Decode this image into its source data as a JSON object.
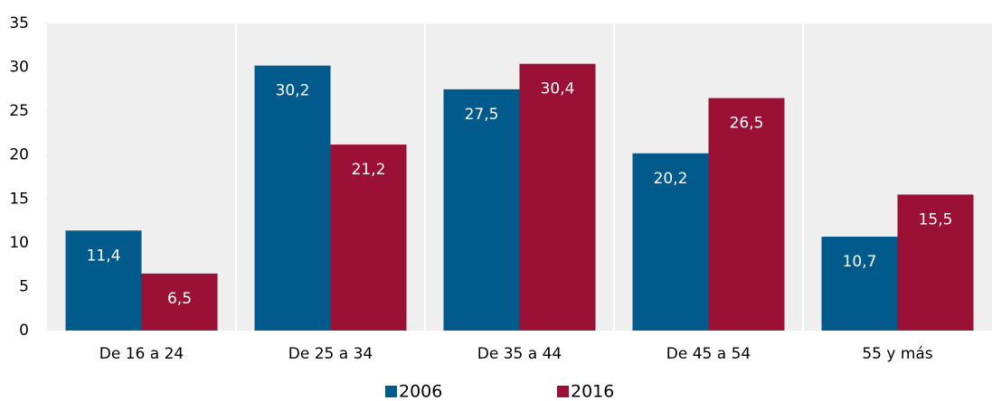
{
  "chart_data": {
    "type": "bar",
    "categories": [
      "De 16 a 24",
      "De 25 a 34",
      "De 35 a 44",
      "De 45 a 54",
      "55 y más"
    ],
    "series": [
      {
        "name": "2006",
        "color": "#005a8c",
        "values": [
          11.4,
          30.2,
          27.5,
          20.2,
          10.7
        ],
        "value_labels": [
          "11,4",
          "30,2",
          "27,5",
          "20,2",
          "10,7"
        ]
      },
      {
        "name": "2016",
        "color": "#9b1035",
        "values": [
          6.5,
          21.2,
          30.4,
          26.5,
          15.5
        ],
        "value_labels": [
          "6,5",
          "21,2",
          "30,4",
          "26,5",
          "15,5"
        ]
      }
    ],
    "ylim": [
      0,
      35
    ],
    "yticks": [
      0,
      5,
      10,
      15,
      20,
      25,
      30,
      35
    ],
    "legend": "bottom"
  }
}
